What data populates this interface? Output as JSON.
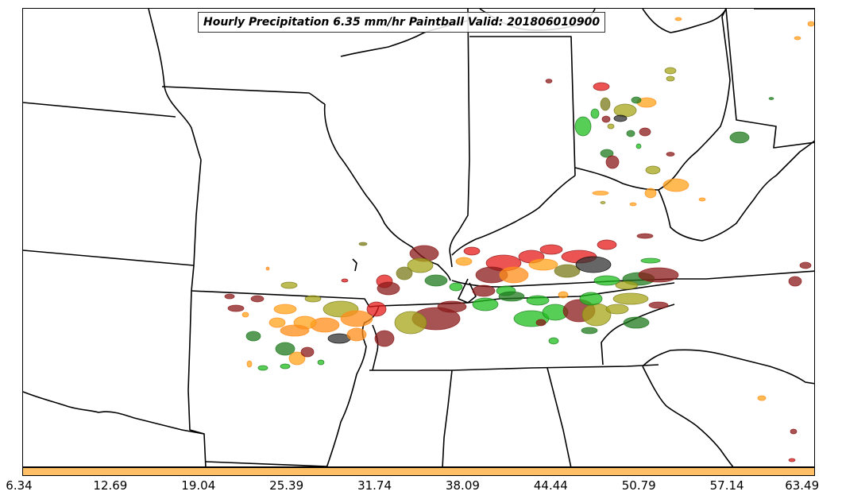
{
  "title": "Hourly Precipitation 6.35 mm/hr Paintball Valid: 201806010900",
  "colorbar": {
    "color": "#ffbf66",
    "ticks": [
      "6.34",
      "12.69",
      "19.04",
      "25.39",
      "31.74",
      "38.09",
      "44.44",
      "50.79",
      "57.14",
      "63.49"
    ]
  },
  "member_colors": [
    "#1fbf1f",
    "#1f7a1f",
    "#e61a1a",
    "#8b1a1a",
    "#ff8c1a",
    "#ffa31a",
    "#a6a619",
    "#7a7a1a",
    "#333333"
  ]
}
